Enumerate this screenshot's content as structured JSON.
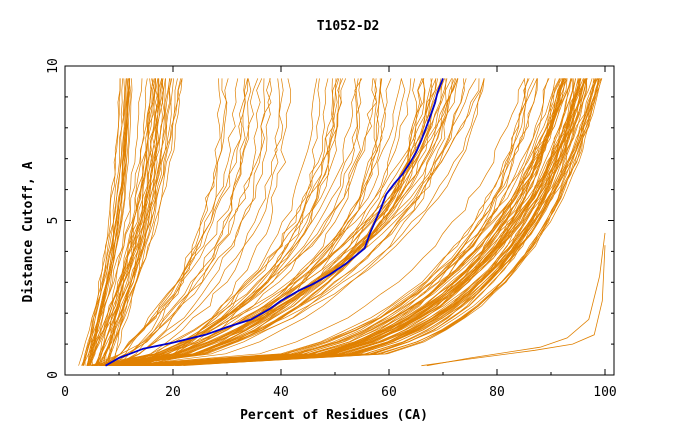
{
  "chart_data": {
    "type": "line",
    "title": "T1052-D2",
    "xlabel": "Percent of Residues (CA)",
    "ylabel": "Distance Cutoff, A",
    "xlim": [
      0,
      100
    ],
    "ylim": [
      0,
      10
    ],
    "x_ticks": [
      0,
      20,
      40,
      60,
      80,
      100
    ],
    "y_ticks": [
      0,
      5,
      10
    ],
    "grid": false,
    "colors": {
      "models": "#e08000",
      "highlight": "#0000cc"
    },
    "highlight_series": {
      "x": [
        7.5,
        10,
        14.5,
        20,
        26,
        30,
        34.5,
        38,
        40,
        42,
        43.5,
        46,
        49,
        52,
        55.5,
        56.5,
        57.5,
        58.5,
        59.5,
        61,
        62.5,
        64,
        65,
        66,
        67.5,
        68.5,
        69,
        70
      ],
      "y": [
        0.3,
        0.55,
        0.85,
        1.05,
        1.3,
        1.55,
        1.8,
        2.15,
        2.4,
        2.6,
        2.75,
        2.95,
        3.25,
        3.6,
        4.1,
        4.6,
        5.0,
        5.4,
        5.85,
        6.2,
        6.5,
        6.9,
        7.2,
        7.6,
        8.3,
        8.8,
        9.15,
        9.6
      ]
    },
    "model_groups": [
      {
        "count": 6,
        "start_x": [
          2.5,
          5
        ],
        "end_x": [
          10,
          13
        ],
        "mid": 0.5,
        "power": 0.9,
        "spread": 0.5
      },
      {
        "count": 10,
        "start_x": [
          3,
          5
        ],
        "end_x": [
          11,
          12.5
        ],
        "mid": 0.5,
        "power": 1,
        "spread": 0.3
      },
      {
        "count": 14,
        "start_x": [
          4,
          8
        ],
        "end_x": [
          14,
          20
        ],
        "mid": 0.45,
        "power": 0.85,
        "spread": 0.8
      },
      {
        "count": 16,
        "start_x": [
          4,
          9
        ],
        "end_x": [
          16,
          22
        ],
        "mid": 0.4,
        "power": 0.9,
        "spread": 0.6
      },
      {
        "count": 14,
        "start_x": [
          5,
          10
        ],
        "end_x": [
          28,
          40
        ],
        "mid": 0.35,
        "power": 1.5,
        "spread": 1.2
      },
      {
        "count": 12,
        "start_x": [
          8,
          14
        ],
        "end_x": [
          40,
          60
        ],
        "mid": 0.3,
        "power": 2.0,
        "spread": 1.5
      },
      {
        "count": 12,
        "start_x": [
          4,
          10
        ],
        "end_x": [
          48,
          65
        ],
        "mid": 0.25,
        "power": 2.2,
        "spread": 1.0
      },
      {
        "count": 14,
        "start_x": [
          5,
          12
        ],
        "end_x": [
          62,
          75
        ],
        "mid": 0.2,
        "power": 2.3,
        "spread": 1.2
      },
      {
        "count": 18,
        "start_x": [
          5,
          12
        ],
        "end_x": [
          68,
          78
        ],
        "mid": 0.18,
        "power": 2.0,
        "spread": 0.8
      },
      {
        "count": 22,
        "start_x": [
          8,
          16
        ],
        "end_x": [
          85,
          95
        ],
        "mid": 0.08,
        "power": 3.5,
        "spread": 1.0
      },
      {
        "count": 28,
        "start_x": [
          10,
          20
        ],
        "end_x": [
          92,
          97
        ],
        "mid": 0.06,
        "power": 3.8,
        "spread": 0.8
      },
      {
        "count": 26,
        "start_x": [
          12,
          22
        ],
        "end_x": [
          95,
          99.5
        ],
        "mid": 0.05,
        "power": 4.0,
        "spread": 0.6
      }
    ],
    "outlier_series": [
      {
        "x": [
          67,
          75,
          88,
          93,
          97,
          99,
          100
        ],
        "y": [
          0.3,
          0.55,
          0.9,
          1.2,
          1.8,
          3.2,
          4.6
        ]
      },
      {
        "x": [
          66,
          74,
          87,
          94,
          98,
          99.5,
          100
        ],
        "y": [
          0.3,
          0.5,
          0.8,
          1.0,
          1.3,
          2.4,
          4.2
        ]
      }
    ]
  }
}
